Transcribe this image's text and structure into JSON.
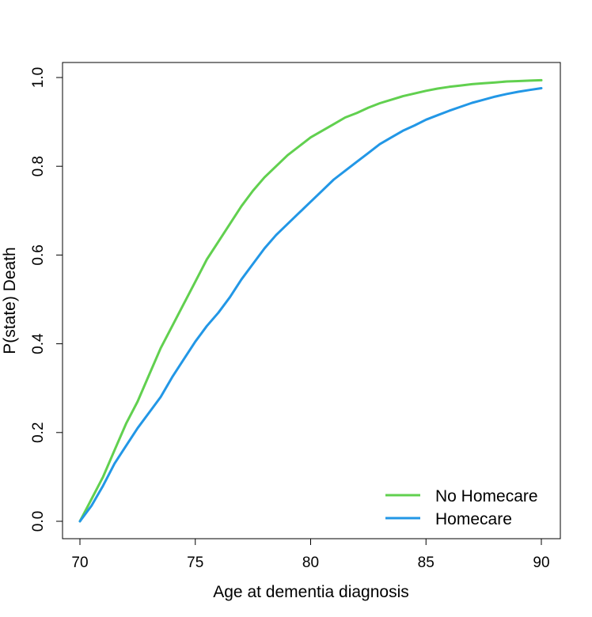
{
  "chart_data": {
    "type": "line",
    "title": "",
    "xlabel": "Age at dementia diagnosis",
    "ylabel": "P(state) Death",
    "xlim": [
      70,
      90
    ],
    "ylim": [
      0,
      1
    ],
    "xticks": [
      "70",
      "75",
      "80",
      "85",
      "90"
    ],
    "yticks": [
      "0.0",
      "0.2",
      "0.4",
      "0.6",
      "0.8",
      "1.0"
    ],
    "grid": false,
    "legend_position": "bottom-right",
    "series": [
      {
        "name": "No Homecare",
        "color": "#61D04F",
        "x": [
          70,
          70.5,
          71,
          71.5,
          72,
          72.5,
          73,
          73.5,
          74,
          74.5,
          75,
          75.5,
          76,
          76.5,
          77,
          77.5,
          78,
          78.5,
          79,
          79.5,
          80,
          80.5,
          81,
          81.5,
          82,
          82.5,
          83,
          83.5,
          84,
          84.5,
          85,
          85.5,
          86,
          86.5,
          87,
          87.5,
          88,
          88.5,
          89,
          89.5,
          90
        ],
        "y": [
          0.0,
          0.05,
          0.1,
          0.16,
          0.22,
          0.27,
          0.33,
          0.39,
          0.44,
          0.49,
          0.54,
          0.59,
          0.63,
          0.67,
          0.71,
          0.745,
          0.775,
          0.8,
          0.825,
          0.845,
          0.865,
          0.88,
          0.895,
          0.91,
          0.92,
          0.932,
          0.942,
          0.95,
          0.958,
          0.964,
          0.97,
          0.975,
          0.979,
          0.982,
          0.985,
          0.987,
          0.989,
          0.991,
          0.992,
          0.993,
          0.994
        ]
      },
      {
        "name": "Homecare",
        "color": "#2297E6",
        "x": [
          70,
          70.5,
          71,
          71.5,
          72,
          72.5,
          73,
          73.5,
          74,
          74.5,
          75,
          75.5,
          76,
          76.5,
          77,
          77.5,
          78,
          78.5,
          79,
          79.5,
          80,
          80.5,
          81,
          81.5,
          82,
          82.5,
          83,
          83.5,
          84,
          84.5,
          85,
          85.5,
          86,
          86.5,
          87,
          87.5,
          88,
          88.5,
          89,
          89.5,
          90
        ],
        "y": [
          0.0,
          0.035,
          0.08,
          0.13,
          0.17,
          0.21,
          0.245,
          0.28,
          0.325,
          0.365,
          0.405,
          0.44,
          0.47,
          0.505,
          0.545,
          0.58,
          0.615,
          0.645,
          0.67,
          0.695,
          0.72,
          0.745,
          0.77,
          0.79,
          0.81,
          0.83,
          0.85,
          0.865,
          0.88,
          0.892,
          0.905,
          0.915,
          0.925,
          0.934,
          0.943,
          0.95,
          0.957,
          0.963,
          0.968,
          0.972,
          0.976
        ]
      }
    ]
  }
}
